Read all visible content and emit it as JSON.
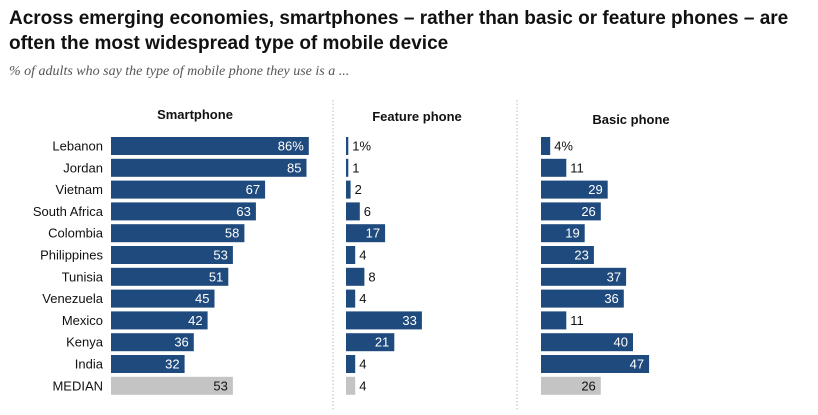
{
  "header": {
    "title": "Across emerging economies, smartphones – rather than basic or feature phones – are often the most widespread type of mobile device",
    "subtitle": "% of adults who say the type of mobile phone they use is a ..."
  },
  "colors": {
    "bar": "#1f4a7e",
    "median_bar": "#c4c4c4",
    "divider": "#bbbbbb"
  },
  "chart_data": {
    "type": "bar",
    "orientation": "horizontal",
    "categories": [
      "Lebanon",
      "Jordan",
      "Vietnam",
      "South Africa",
      "Colombia",
      "Philippines",
      "Tunisia",
      "Venezuela",
      "Mexico",
      "Kenya",
      "India",
      "MEDIAN"
    ],
    "series": [
      {
        "name": "Smartphone",
        "values": [
          86,
          85,
          67,
          63,
          58,
          53,
          51,
          45,
          42,
          36,
          32,
          53
        ],
        "labels": [
          "86%",
          "85",
          "67",
          "63",
          "58",
          "53",
          "51",
          "45",
          "42",
          "36",
          "32",
          "53"
        ]
      },
      {
        "name": "Feature phone",
        "values": [
          1,
          1,
          2,
          6,
          17,
          4,
          8,
          4,
          33,
          21,
          4,
          4
        ],
        "labels": [
          "1%",
          "1",
          "2",
          "6",
          "17",
          "4",
          "8",
          "4",
          "33",
          "21",
          "4",
          "4"
        ]
      },
      {
        "name": "Basic phone",
        "values": [
          4,
          11,
          29,
          26,
          19,
          23,
          37,
          36,
          11,
          40,
          47,
          26
        ],
        "labels": [
          "4%",
          "11",
          "29",
          "26",
          "19",
          "23",
          "37",
          "36",
          "11",
          "40",
          "47",
          "26"
        ]
      }
    ],
    "highlight_last_category": true,
    "grid": false,
    "legend": "none"
  }
}
